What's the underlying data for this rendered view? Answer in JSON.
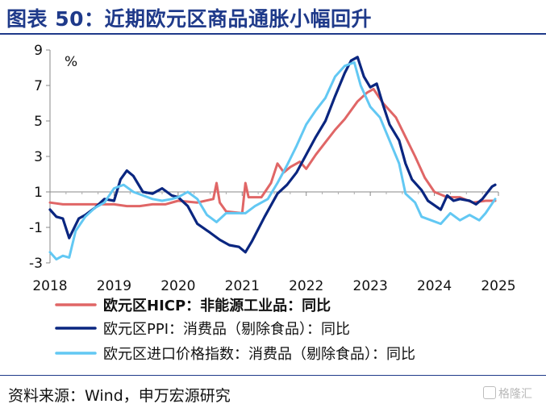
{
  "header": {
    "title": "图表 50：近期欧元区商品通胀小幅回升"
  },
  "footer": {
    "source": "资料来源：Wind，申万宏源研究",
    "watermark": "格隆汇"
  },
  "colors": {
    "hicp": "#e06666",
    "ppi": "#0a2680",
    "import": "#62c8f3",
    "title": "#1f3a8a"
  },
  "chart_data": {
    "type": "line",
    "unit_label": "%",
    "ylim": [
      -3,
      9
    ],
    "yticks": [
      "9",
      "7",
      "5",
      "3",
      "1",
      "-1",
      "-3"
    ],
    "xlim": [
      2018.0,
      2025.0
    ],
    "xticks": [
      "2018",
      "2019",
      "2020",
      "2021",
      "2022",
      "2023",
      "2024",
      "2025"
    ],
    "grid": false,
    "legend_position": "bottom",
    "series": [
      {
        "name": "欧元区HICP：非能源工业品：同比",
        "color": "#e06666",
        "points": [
          [
            2018.0,
            0.4
          ],
          [
            2018.2,
            0.3
          ],
          [
            2018.4,
            0.3
          ],
          [
            2018.6,
            0.3
          ],
          [
            2018.8,
            0.3
          ],
          [
            2019.0,
            0.3
          ],
          [
            2019.2,
            0.2
          ],
          [
            2019.4,
            0.2
          ],
          [
            2019.6,
            0.3
          ],
          [
            2019.8,
            0.3
          ],
          [
            2020.0,
            0.5
          ],
          [
            2020.3,
            0.4
          ],
          [
            2020.55,
            0.6
          ],
          [
            2020.6,
            1.5
          ],
          [
            2020.65,
            0.4
          ],
          [
            2020.75,
            -0.1
          ],
          [
            2021.0,
            -0.2
          ],
          [
            2021.05,
            1.5
          ],
          [
            2021.1,
            0.7
          ],
          [
            2021.3,
            0.7
          ],
          [
            2021.45,
            1.5
          ],
          [
            2021.55,
            2.6
          ],
          [
            2021.65,
            2.1
          ],
          [
            2021.75,
            2.4
          ],
          [
            2021.9,
            2.7
          ],
          [
            2022.0,
            2.3
          ],
          [
            2022.15,
            3.1
          ],
          [
            2022.3,
            3.8
          ],
          [
            2022.45,
            4.5
          ],
          [
            2022.6,
            5.1
          ],
          [
            2022.8,
            6.1
          ],
          [
            2022.95,
            6.6
          ],
          [
            2023.05,
            6.8
          ],
          [
            2023.2,
            6.0
          ],
          [
            2023.4,
            5.2
          ],
          [
            2023.55,
            4.1
          ],
          [
            2023.7,
            3.0
          ],
          [
            2023.85,
            1.8
          ],
          [
            2024.0,
            1.0
          ],
          [
            2024.2,
            0.7
          ],
          [
            2024.4,
            0.7
          ],
          [
            2024.6,
            0.4
          ],
          [
            2024.8,
            0.5
          ],
          [
            2024.95,
            0.5
          ]
        ]
      },
      {
        "name": "欧元区PPI：消费品（剔除食品）：同比",
        "color": "#0a2680",
        "points": [
          [
            2018.0,
            0.0
          ],
          [
            2018.1,
            -0.4
          ],
          [
            2018.2,
            -0.5
          ],
          [
            2018.3,
            -1.6
          ],
          [
            2018.45,
            -0.5
          ],
          [
            2018.55,
            -0.3
          ],
          [
            2018.7,
            0.1
          ],
          [
            2018.85,
            0.6
          ],
          [
            2019.0,
            0.5
          ],
          [
            2019.1,
            1.7
          ],
          [
            2019.2,
            2.2
          ],
          [
            2019.3,
            1.9
          ],
          [
            2019.45,
            1.0
          ],
          [
            2019.6,
            0.9
          ],
          [
            2019.75,
            1.2
          ],
          [
            2019.9,
            0.8
          ],
          [
            2020.0,
            0.7
          ],
          [
            2020.15,
            0.2
          ],
          [
            2020.3,
            -0.8
          ],
          [
            2020.5,
            -1.3
          ],
          [
            2020.65,
            -1.7
          ],
          [
            2020.8,
            -2.0
          ],
          [
            2020.95,
            -2.1
          ],
          [
            2021.05,
            -2.4
          ],
          [
            2021.15,
            -1.8
          ],
          [
            2021.35,
            -0.4
          ],
          [
            2021.55,
            0.9
          ],
          [
            2021.7,
            1.4
          ],
          [
            2021.85,
            2.1
          ],
          [
            2022.0,
            3.1
          ],
          [
            2022.15,
            4.1
          ],
          [
            2022.3,
            5.0
          ],
          [
            2022.45,
            6.4
          ],
          [
            2022.6,
            7.7
          ],
          [
            2022.7,
            8.4
          ],
          [
            2022.8,
            8.6
          ],
          [
            2022.9,
            7.5
          ],
          [
            2023.0,
            6.9
          ],
          [
            2023.1,
            7.1
          ],
          [
            2023.2,
            5.9
          ],
          [
            2023.3,
            4.8
          ],
          [
            2023.45,
            3.9
          ],
          [
            2023.55,
            2.6
          ],
          [
            2023.65,
            1.7
          ],
          [
            2023.8,
            1.1
          ],
          [
            2023.9,
            0.5
          ],
          [
            2024.1,
            0.0
          ],
          [
            2024.2,
            0.8
          ],
          [
            2024.3,
            0.5
          ],
          [
            2024.4,
            0.6
          ],
          [
            2024.55,
            0.5
          ],
          [
            2024.65,
            0.3
          ],
          [
            2024.75,
            0.6
          ],
          [
            2024.9,
            1.3
          ],
          [
            2024.95,
            1.4
          ]
        ]
      },
      {
        "name": "欧元区进口价格指数：消费品（剔除食品）：同比",
        "color": "#62c8f3",
        "points": [
          [
            2018.0,
            -2.4
          ],
          [
            2018.1,
            -2.8
          ],
          [
            2018.2,
            -2.6
          ],
          [
            2018.3,
            -2.7
          ],
          [
            2018.4,
            -1.2
          ],
          [
            2018.55,
            -0.4
          ],
          [
            2018.7,
            0.1
          ],
          [
            2018.85,
            0.4
          ],
          [
            2019.0,
            1.2
          ],
          [
            2019.15,
            1.4
          ],
          [
            2019.3,
            1.0
          ],
          [
            2019.45,
            0.8
          ],
          [
            2019.6,
            0.6
          ],
          [
            2019.75,
            0.5
          ],
          [
            2019.9,
            0.6
          ],
          [
            2020.0,
            0.7
          ],
          [
            2020.15,
            1.0
          ],
          [
            2020.3,
            0.6
          ],
          [
            2020.45,
            -0.3
          ],
          [
            2020.6,
            -0.7
          ],
          [
            2020.75,
            -0.2
          ],
          [
            2020.9,
            -0.2
          ],
          [
            2021.05,
            -0.2
          ],
          [
            2021.2,
            0.2
          ],
          [
            2021.4,
            0.6
          ],
          [
            2021.55,
            1.5
          ],
          [
            2021.7,
            2.5
          ],
          [
            2021.85,
            3.6
          ],
          [
            2022.0,
            4.8
          ],
          [
            2022.15,
            5.6
          ],
          [
            2022.3,
            6.3
          ],
          [
            2022.45,
            7.5
          ],
          [
            2022.6,
            8.1
          ],
          [
            2022.75,
            8.3
          ],
          [
            2022.85,
            7.0
          ],
          [
            2023.0,
            5.8
          ],
          [
            2023.15,
            5.2
          ],
          [
            2023.3,
            3.9
          ],
          [
            2023.45,
            2.6
          ],
          [
            2023.55,
            0.9
          ],
          [
            2023.7,
            0.4
          ],
          [
            2023.8,
            -0.4
          ],
          [
            2023.95,
            -0.6
          ],
          [
            2024.1,
            -0.8
          ],
          [
            2024.25,
            -0.2
          ],
          [
            2024.4,
            -0.6
          ],
          [
            2024.55,
            -0.3
          ],
          [
            2024.7,
            -0.6
          ],
          [
            2024.8,
            -0.2
          ],
          [
            2024.95,
            0.6
          ]
        ]
      }
    ]
  }
}
